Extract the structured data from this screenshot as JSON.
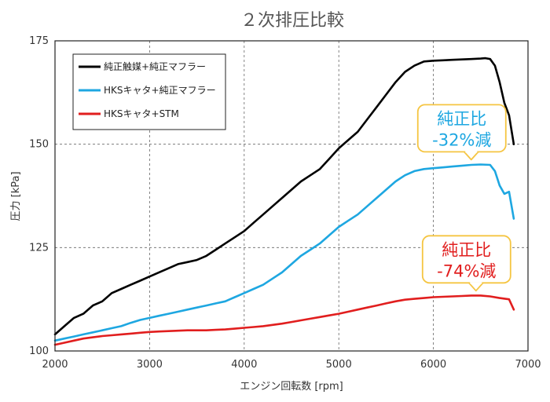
{
  "chart_data": {
    "type": "line",
    "title": "２次排圧比較",
    "xlabel": "エンジン回転数 [rpm]",
    "ylabel": "圧力 [kPa]",
    "xlim": [
      2000,
      7000
    ],
    "ylim": [
      100,
      175
    ],
    "x_ticks": [
      2000,
      3000,
      4000,
      5000,
      6000,
      7000
    ],
    "y_ticks": [
      100,
      125,
      150,
      175
    ],
    "grid": "dashed",
    "legend_position": "top-left",
    "series": [
      {
        "name": "純正触媒+純正マフラー",
        "color": "#000000",
        "points": [
          [
            2000,
            104
          ],
          [
            2100,
            106
          ],
          [
            2200,
            108
          ],
          [
            2300,
            109
          ],
          [
            2400,
            111
          ],
          [
            2500,
            112
          ],
          [
            2600,
            114
          ],
          [
            2700,
            115
          ],
          [
            2800,
            116
          ],
          [
            2900,
            117
          ],
          [
            3000,
            118
          ],
          [
            3100,
            119
          ],
          [
            3200,
            120
          ],
          [
            3300,
            121
          ],
          [
            3400,
            121.5
          ],
          [
            3500,
            122
          ],
          [
            3600,
            123
          ],
          [
            3700,
            124.5
          ],
          [
            3800,
            126
          ],
          [
            3900,
            127.5
          ],
          [
            4000,
            129
          ],
          [
            4100,
            131
          ],
          [
            4200,
            133
          ],
          [
            4300,
            135
          ],
          [
            4400,
            137
          ],
          [
            4500,
            139
          ],
          [
            4600,
            141
          ],
          [
            4700,
            142.5
          ],
          [
            4800,
            144
          ],
          [
            4900,
            146.5
          ],
          [
            5000,
            149
          ],
          [
            5100,
            151
          ],
          [
            5200,
            153
          ],
          [
            5300,
            156
          ],
          [
            5400,
            159
          ],
          [
            5500,
            162
          ],
          [
            5600,
            165
          ],
          [
            5700,
            167.5
          ],
          [
            5800,
            169
          ],
          [
            5900,
            170
          ],
          [
            6000,
            170.2
          ],
          [
            6100,
            170.3
          ],
          [
            6200,
            170.4
          ],
          [
            6300,
            170.5
          ],
          [
            6400,
            170.6
          ],
          [
            6500,
            170.7
          ],
          [
            6550,
            170.8
          ],
          [
            6600,
            170.6
          ],
          [
            6650,
            169
          ],
          [
            6700,
            165
          ],
          [
            6750,
            160
          ],
          [
            6800,
            157
          ],
          [
            6850,
            150
          ]
        ]
      },
      {
        "name": "HKSキャタ+純正マフラー",
        "color": "#1ea7e1",
        "points": [
          [
            2000,
            102.5
          ],
          [
            2100,
            103
          ],
          [
            2200,
            103.5
          ],
          [
            2300,
            104
          ],
          [
            2400,
            104.5
          ],
          [
            2500,
            105
          ],
          [
            2600,
            105.5
          ],
          [
            2700,
            106
          ],
          [
            2800,
            106.8
          ],
          [
            2900,
            107.5
          ],
          [
            3000,
            108
          ],
          [
            3100,
            108.5
          ],
          [
            3200,
            109
          ],
          [
            3300,
            109.5
          ],
          [
            3400,
            110
          ],
          [
            3500,
            110.5
          ],
          [
            3600,
            111
          ],
          [
            3700,
            111.5
          ],
          [
            3800,
            112
          ],
          [
            3900,
            113
          ],
          [
            4000,
            114
          ],
          [
            4100,
            115
          ],
          [
            4200,
            116
          ],
          [
            4300,
            117.5
          ],
          [
            4400,
            119
          ],
          [
            4500,
            121
          ],
          [
            4600,
            123
          ],
          [
            4700,
            124.5
          ],
          [
            4800,
            126
          ],
          [
            4900,
            128
          ],
          [
            5000,
            130
          ],
          [
            5100,
            131.5
          ],
          [
            5200,
            133
          ],
          [
            5300,
            135
          ],
          [
            5400,
            137
          ],
          [
            5500,
            139
          ],
          [
            5600,
            141
          ],
          [
            5700,
            142.5
          ],
          [
            5800,
            143.5
          ],
          [
            5900,
            144
          ],
          [
            6000,
            144.2
          ],
          [
            6100,
            144.4
          ],
          [
            6200,
            144.6
          ],
          [
            6300,
            144.8
          ],
          [
            6400,
            145
          ],
          [
            6500,
            145.1
          ],
          [
            6600,
            145
          ],
          [
            6650,
            143.5
          ],
          [
            6700,
            140
          ],
          [
            6750,
            138
          ],
          [
            6800,
            138.5
          ],
          [
            6850,
            132
          ]
        ]
      },
      {
        "name": "HKSキャタ+STM",
        "color": "#e11e1e",
        "points": [
          [
            2000,
            101.5
          ],
          [
            2100,
            102
          ],
          [
            2200,
            102.5
          ],
          [
            2300,
            103
          ],
          [
            2400,
            103.3
          ],
          [
            2500,
            103.6
          ],
          [
            2600,
            103.8
          ],
          [
            2700,
            104
          ],
          [
            2800,
            104.2
          ],
          [
            2900,
            104.4
          ],
          [
            3000,
            104.6
          ],
          [
            3100,
            104.7
          ],
          [
            3200,
            104.8
          ],
          [
            3300,
            104.9
          ],
          [
            3400,
            105
          ],
          [
            3500,
            105
          ],
          [
            3600,
            105
          ],
          [
            3700,
            105.1
          ],
          [
            3800,
            105.2
          ],
          [
            3900,
            105.4
          ],
          [
            4000,
            105.6
          ],
          [
            4100,
            105.8
          ],
          [
            4200,
            106
          ],
          [
            4300,
            106.3
          ],
          [
            4400,
            106.6
          ],
          [
            4500,
            107
          ],
          [
            4600,
            107.4
          ],
          [
            4700,
            107.8
          ],
          [
            4800,
            108.2
          ],
          [
            4900,
            108.6
          ],
          [
            5000,
            109
          ],
          [
            5100,
            109.5
          ],
          [
            5200,
            110
          ],
          [
            5300,
            110.5
          ],
          [
            5400,
            111
          ],
          [
            5500,
            111.5
          ],
          [
            5600,
            112
          ],
          [
            5700,
            112.4
          ],
          [
            5800,
            112.6
          ],
          [
            5900,
            112.8
          ],
          [
            6000,
            113
          ],
          [
            6100,
            113.1
          ],
          [
            6200,
            113.2
          ],
          [
            6300,
            113.3
          ],
          [
            6400,
            113.4
          ],
          [
            6500,
            113.4
          ],
          [
            6600,
            113.2
          ],
          [
            6700,
            112.8
          ],
          [
            6800,
            112.5
          ],
          [
            6850,
            110
          ]
        ]
      }
    ],
    "annotations": [
      {
        "line1": "純正比",
        "line2": "-32%減",
        "color": "#1ea7e1",
        "anchor_x": 6400,
        "anchor_y": 145.5
      },
      {
        "line1": "純正比",
        "line2": "-74%減",
        "color": "#e11e1e",
        "anchor_x": 6450,
        "anchor_y": 113.8
      }
    ]
  }
}
